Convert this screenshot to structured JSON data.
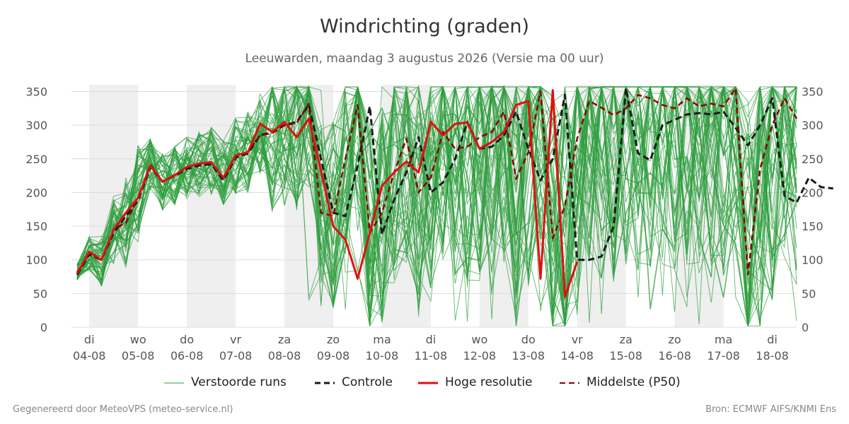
{
  "colors": {
    "background": "#ffffff",
    "weekend_band": "#efefef",
    "grid": "#dddddd",
    "members": "#2e9e3e",
    "control": "#1a1a1a",
    "hires": "#e01010",
    "median": "#8b0000"
  },
  "footer": {
    "left": "Gegenereerd door MeteoVPS (meteo-service.nl)",
    "right": "Bron: ECMWF AIFS/KNMI Ens"
  },
  "chart_data": {
    "type": "line",
    "title": "Windrichting (graden)",
    "subtitle": "Leeuwarden, maandag  3 augustus 2026 (Versie ma 00 uur)",
    "y_ticks": [
      0,
      50,
      100,
      150,
      200,
      250,
      300,
      350
    ],
    "ylim": [
      0,
      360
    ],
    "x_range_days": [
      "03-08 18:00",
      "18-08 00:00"
    ],
    "x_ticks": [
      {
        "day": "di",
        "date": "04-08"
      },
      {
        "day": "wo",
        "date": "05-08"
      },
      {
        "day": "do",
        "date": "06-08"
      },
      {
        "day": "vr",
        "date": "07-08"
      },
      {
        "day": "za",
        "date": "08-08"
      },
      {
        "day": "zo",
        "date": "09-08"
      },
      {
        "day": "ma",
        "date": "10-08"
      },
      {
        "day": "di",
        "date": "11-08"
      },
      {
        "day": "wo",
        "date": "12-08"
      },
      {
        "day": "do",
        "date": "13-08"
      },
      {
        "day": "vr",
        "date": "14-08"
      },
      {
        "day": "za",
        "date": "15-08"
      },
      {
        "day": "zo",
        "date": "16-08"
      },
      {
        "day": "ma",
        "date": "17-08"
      },
      {
        "day": "di",
        "date": "18-08"
      }
    ],
    "grid": "horizontal",
    "legend_position": "bottom",
    "shaded_days": [
      "04-08",
      "06-08",
      "08-08",
      "10-08",
      "12-08",
      "14-08",
      "16-08"
    ],
    "series": [
      {
        "name": "Controle",
        "key": "control",
        "style": "dashed",
        "points": [
          [
            "03-08 18:00",
            78
          ],
          [
            "04-08 00:00",
            108
          ],
          [
            "04-08 06:00",
            100
          ],
          [
            "04-08 12:00",
            140
          ],
          [
            "04-08 18:00",
            165
          ],
          [
            "05-08 00:00",
            188
          ],
          [
            "05-08 06:00",
            238
          ],
          [
            "05-08 12:00",
            216
          ],
          [
            "05-08 18:00",
            225
          ],
          [
            "06-08 00:00",
            235
          ],
          [
            "06-08 06:00",
            240
          ],
          [
            "06-08 12:00",
            242
          ],
          [
            "06-08 18:00",
            218
          ],
          [
            "07-08 00:00",
            252
          ],
          [
            "07-08 06:00",
            258
          ],
          [
            "07-08 12:00",
            285
          ],
          [
            "07-08 18:00",
            290
          ],
          [
            "08-08 00:00",
            300
          ],
          [
            "08-08 06:00",
            305
          ],
          [
            "08-08 12:00",
            330
          ],
          [
            "08-08 18:00",
            250
          ],
          [
            "09-08 00:00",
            170
          ],
          [
            "09-08 06:00",
            165
          ],
          [
            "09-08 12:00",
            240
          ],
          [
            "09-08 18:00",
            328
          ],
          [
            "10-08 00:00",
            138
          ],
          [
            "10-08 06:00",
            190
          ],
          [
            "10-08 12:00",
            230
          ],
          [
            "10-08 18:00",
            282
          ],
          [
            "11-08 00:00",
            200
          ],
          [
            "11-08 06:00",
            215
          ],
          [
            "11-08 12:00",
            250
          ],
          [
            "11-08 18:00",
            305
          ],
          [
            "12-08 00:00",
            265
          ],
          [
            "12-08 06:00",
            268
          ],
          [
            "12-08 12:00",
            285
          ],
          [
            "12-08 18:00",
            320
          ],
          [
            "13-08 00:00",
            265
          ],
          [
            "13-08 06:00",
            218
          ],
          [
            "13-08 12:00",
            250
          ],
          [
            "13-08 18:00",
            345
          ],
          [
            "14-08 00:00",
            100
          ],
          [
            "14-08 06:00",
            100
          ],
          [
            "14-08 12:00",
            105
          ],
          [
            "14-08 18:00",
            150
          ],
          [
            "15-08 00:00",
            355
          ],
          [
            "15-08 06:00",
            258
          ],
          [
            "15-08 12:00",
            248
          ],
          [
            "15-08 18:00",
            300
          ],
          [
            "16-08 00:00",
            308
          ],
          [
            "16-08 06:00",
            316
          ],
          [
            "16-08 12:00",
            318
          ],
          [
            "16-08 18:00",
            316
          ],
          [
            "17-08 00:00",
            320
          ],
          [
            "17-08 06:00",
            296
          ],
          [
            "17-08 12:00",
            270
          ],
          [
            "17-08 18:00",
            300
          ],
          [
            "18-08 00:00",
            340
          ],
          [
            "18-08 06:00",
            195
          ],
          [
            "18-08 12:00",
            185
          ],
          [
            "18-08 18:00",
            222
          ],
          [
            "19-08 00:00",
            208
          ],
          [
            "19-08 06:00",
            206
          ]
        ]
      },
      {
        "name": "Hoge resolutie",
        "key": "hires",
        "style": "solid",
        "points": [
          [
            "03-08 18:00",
            80
          ],
          [
            "04-08 00:00",
            112
          ],
          [
            "04-08 06:00",
            100
          ],
          [
            "04-08 12:00",
            145
          ],
          [
            "04-08 18:00",
            170
          ],
          [
            "05-08 00:00",
            192
          ],
          [
            "05-08 06:00",
            240
          ],
          [
            "05-08 12:00",
            216
          ],
          [
            "05-08 18:00",
            226
          ],
          [
            "06-08 00:00",
            238
          ],
          [
            "06-08 06:00",
            243
          ],
          [
            "06-08 12:00",
            245
          ],
          [
            "06-08 18:00",
            222
          ],
          [
            "07-08 00:00",
            255
          ],
          [
            "07-08 06:00",
            260
          ],
          [
            "07-08 12:00",
            302
          ],
          [
            "07-08 18:00",
            290
          ],
          [
            "08-08 00:00",
            305
          ],
          [
            "08-08 06:00",
            282
          ],
          [
            "08-08 12:00",
            310
          ],
          [
            "08-08 18:00",
            232
          ],
          [
            "09-08 00:00",
            150
          ],
          [
            "09-08 06:00",
            130
          ],
          [
            "09-08 12:00",
            72
          ],
          [
            "09-08 18:00",
            140
          ],
          [
            "10-08 00:00",
            210
          ],
          [
            "10-08 06:00",
            230
          ],
          [
            "10-08 12:00",
            246
          ],
          [
            "10-08 18:00",
            230
          ],
          [
            "11-08 00:00",
            305
          ],
          [
            "11-08 06:00",
            285
          ],
          [
            "11-08 12:00",
            302
          ],
          [
            "11-08 18:00",
            304
          ],
          [
            "12-08 00:00",
            265
          ],
          [
            "12-08 06:00",
            275
          ],
          [
            "12-08 12:00",
            290
          ],
          [
            "12-08 18:00",
            330
          ],
          [
            "13-08 00:00",
            336
          ],
          [
            "13-08 06:00",
            72
          ],
          [
            "13-08 12:00",
            352
          ],
          [
            "13-08 18:00",
            45
          ],
          [
            "14-08 00:00",
            97
          ]
        ]
      },
      {
        "name": "Middelste (P50)",
        "key": "median",
        "style": "dashed",
        "points": [
          [
            "03-08 18:00",
            82
          ],
          [
            "04-08 00:00",
            110
          ],
          [
            "04-08 06:00",
            100
          ],
          [
            "04-08 12:00",
            145
          ],
          [
            "04-08 18:00",
            155
          ],
          [
            "05-08 00:00",
            192
          ],
          [
            "05-08 06:00",
            242
          ],
          [
            "05-08 12:00",
            216
          ],
          [
            "05-08 18:00",
            226
          ],
          [
            "06-08 00:00",
            238
          ],
          [
            "06-08 06:00",
            243
          ],
          [
            "06-08 12:00",
            245
          ],
          [
            "06-08 18:00",
            222
          ],
          [
            "07-08 00:00",
            255
          ],
          [
            "07-08 06:00",
            260
          ],
          [
            "07-08 12:00",
            285
          ],
          [
            "07-08 18:00",
            288
          ],
          [
            "08-08 00:00",
            300
          ],
          [
            "08-08 06:00",
            303
          ],
          [
            "08-08 12:00",
            332
          ],
          [
            "08-08 18:00",
            170
          ],
          [
            "09-08 00:00",
            165
          ],
          [
            "09-08 06:00",
            250
          ],
          [
            "09-08 12:00",
            330
          ],
          [
            "09-08 18:00",
            140
          ],
          [
            "10-08 00:00",
            170
          ],
          [
            "10-08 06:00",
            230
          ],
          [
            "10-08 12:00",
            280
          ],
          [
            "10-08 18:00",
            200
          ],
          [
            "11-08 00:00",
            222
          ],
          [
            "11-08 06:00",
            290
          ],
          [
            "11-08 12:00",
            265
          ],
          [
            "11-08 18:00",
            268
          ],
          [
            "12-08 00:00",
            282
          ],
          [
            "12-08 06:00",
            290
          ],
          [
            "12-08 12:00",
            320
          ],
          [
            "12-08 18:00",
            220
          ],
          [
            "13-08 00:00",
            260
          ],
          [
            "13-08 06:00",
            350
          ],
          [
            "13-08 12:00",
            132
          ],
          [
            "13-08 18:00",
            180
          ],
          [
            "14-08 00:00",
            280
          ],
          [
            "14-08 06:00",
            336
          ],
          [
            "14-08 12:00",
            326
          ],
          [
            "14-08 18:00",
            315
          ],
          [
            "15-08 00:00",
            325
          ],
          [
            "15-08 06:00",
            345
          ],
          [
            "15-08 12:00",
            340
          ],
          [
            "15-08 18:00",
            330
          ],
          [
            "16-08 00:00",
            325
          ],
          [
            "16-08 06:00",
            340
          ],
          [
            "16-08 12:00",
            328
          ],
          [
            "16-08 18:00",
            332
          ],
          [
            "17-08 00:00",
            328
          ],
          [
            "17-08 06:00",
            355
          ],
          [
            "17-08 12:00",
            78
          ],
          [
            "17-08 18:00",
            235
          ],
          [
            "18-08 00:00",
            300
          ],
          [
            "18-08 06:00",
            340
          ],
          [
            "18-08 12:00",
            310
          ]
        ]
      },
      {
        "name": "Verstoorde runs",
        "key": "members",
        "style": "thin",
        "members": 50
      }
    ]
  }
}
